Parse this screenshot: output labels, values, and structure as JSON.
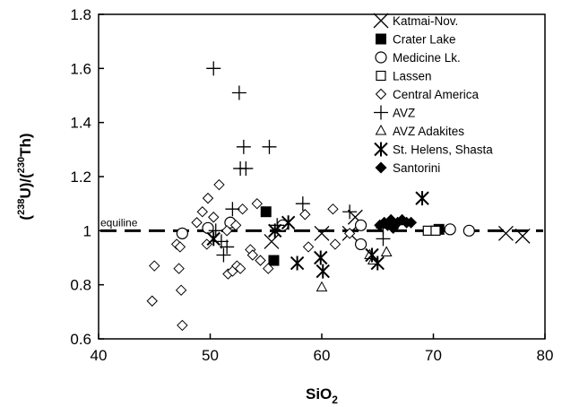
{
  "chart_data": {
    "type": "scatter",
    "xlabel": "SiO",
    "xlabel_sub": "2",
    "ylabel_parts": [
      "(",
      "238",
      "U)/(",
      "230",
      "Th)"
    ],
    "xlim": [
      40,
      80
    ],
    "ylim": [
      0.6,
      1.8
    ],
    "xticks": [
      40,
      50,
      60,
      70,
      80
    ],
    "yticks": [
      0.6,
      0.8,
      1.0,
      1.2,
      1.4,
      1.6,
      1.8
    ],
    "ytick_labels": [
      "0.6",
      "0.8",
      "1",
      "1.2",
      "1.4",
      "1.6",
      "1.8"
    ],
    "grid": false,
    "legend_position": "top-right",
    "annotation": {
      "text": "equiline",
      "y": 1.0
    },
    "reference_line": {
      "y": 1.0,
      "style": "dashed"
    },
    "series": [
      {
        "name": "Katmai-Nov.",
        "marker": "x",
        "points": [
          [
            55.5,
            0.96
          ],
          [
            60,
            0.99
          ],
          [
            62.5,
            0.99
          ],
          [
            63,
            1.05
          ],
          [
            76.5,
            0.99
          ],
          [
            78,
            0.98
          ]
        ]
      },
      {
        "name": "Crater Lake",
        "marker": "square-filled",
        "points": [
          [
            55,
            1.07
          ],
          [
            55.7,
            0.89
          ],
          [
            70.5,
            1.005
          ]
        ]
      },
      {
        "name": "Medicine Lk.",
        "marker": "circle-open",
        "points": [
          [
            47.5,
            0.99
          ],
          [
            49.8,
            1.01
          ],
          [
            51.8,
            1.03
          ],
          [
            56.5,
            1.02
          ],
          [
            63.5,
            1.02
          ],
          [
            63.5,
            0.95
          ],
          [
            71.5,
            1.005
          ],
          [
            73.2,
            1.0
          ]
        ]
      },
      {
        "name": "Lassen",
        "marker": "square-open",
        "points": [
          [
            69.5,
            1.0
          ],
          [
            70.2,
            1.0
          ]
        ]
      },
      {
        "name": "Central America",
        "marker": "diamond-open",
        "points": [
          [
            45,
            0.87
          ],
          [
            44.8,
            0.74
          ],
          [
            47,
            0.95
          ],
          [
            47.3,
            0.94
          ],
          [
            47.2,
            0.86
          ],
          [
            47.4,
            0.78
          ],
          [
            47.5,
            0.65
          ],
          [
            48.8,
            1.03
          ],
          [
            49.3,
            1.07
          ],
          [
            49.7,
            0.95
          ],
          [
            49.8,
            1.12
          ],
          [
            50.3,
            1.05
          ],
          [
            50.8,
            1.17
          ],
          [
            51.5,
            1.0
          ],
          [
            51.6,
            0.84
          ],
          [
            52,
            0.85
          ],
          [
            52.3,
            1.02
          ],
          [
            52.4,
            0.87
          ],
          [
            52.7,
            0.86
          ],
          [
            52.9,
            1.08
          ],
          [
            53.6,
            0.93
          ],
          [
            53.8,
            0.91
          ],
          [
            54.2,
            1.1
          ],
          [
            54.5,
            0.89
          ],
          [
            55.2,
            0.86
          ],
          [
            58.5,
            1.06
          ],
          [
            58.8,
            0.94
          ],
          [
            61,
            1.08
          ],
          [
            61.2,
            0.95
          ],
          [
            62.5,
            0.99
          ]
        ]
      },
      {
        "name": "AVZ",
        "marker": "plus",
        "points": [
          [
            50.3,
            1.6
          ],
          [
            52.6,
            1.51
          ],
          [
            53,
            1.31
          ],
          [
            52.7,
            1.23
          ],
          [
            53.2,
            1.23
          ],
          [
            55.3,
            1.31
          ],
          [
            50.5,
            1.0
          ],
          [
            51,
            0.96
          ],
          [
            51.2,
            0.91
          ],
          [
            51.5,
            0.94
          ],
          [
            52,
            1.08
          ],
          [
            56,
            1.02
          ],
          [
            58.3,
            1.1
          ],
          [
            62.5,
            1.07
          ],
          [
            65.5,
            0.97
          ],
          [
            65.5,
            1.01
          ]
        ]
      },
      {
        "name": "AVZ Adakites",
        "marker": "triangle-open",
        "points": [
          [
            60,
            0.79
          ],
          [
            64.3,
            0.91
          ],
          [
            64.6,
            0.89
          ],
          [
            65.8,
            0.92
          ]
        ]
      },
      {
        "name": "St. Helens, Shasta",
        "marker": "asterisk",
        "points": [
          [
            50.3,
            0.97
          ],
          [
            55.8,
            1.0
          ],
          [
            57,
            1.03
          ],
          [
            57.8,
            0.88
          ],
          [
            59.9,
            0.9
          ],
          [
            60.1,
            0.85
          ],
          [
            64.5,
            0.91
          ],
          [
            65,
            0.88
          ],
          [
            69,
            1.12
          ]
        ]
      },
      {
        "name": "Santorini",
        "marker": "diamond-filled",
        "points": [
          [
            65.2,
            1.02
          ],
          [
            65.6,
            1.03
          ],
          [
            65.9,
            1.02
          ],
          [
            66.2,
            1.04
          ],
          [
            66.4,
            1.01
          ],
          [
            66.8,
            1.03
          ],
          [
            67.2,
            1.04
          ],
          [
            67.6,
            1.03
          ],
          [
            68,
            1.03
          ]
        ]
      }
    ]
  }
}
